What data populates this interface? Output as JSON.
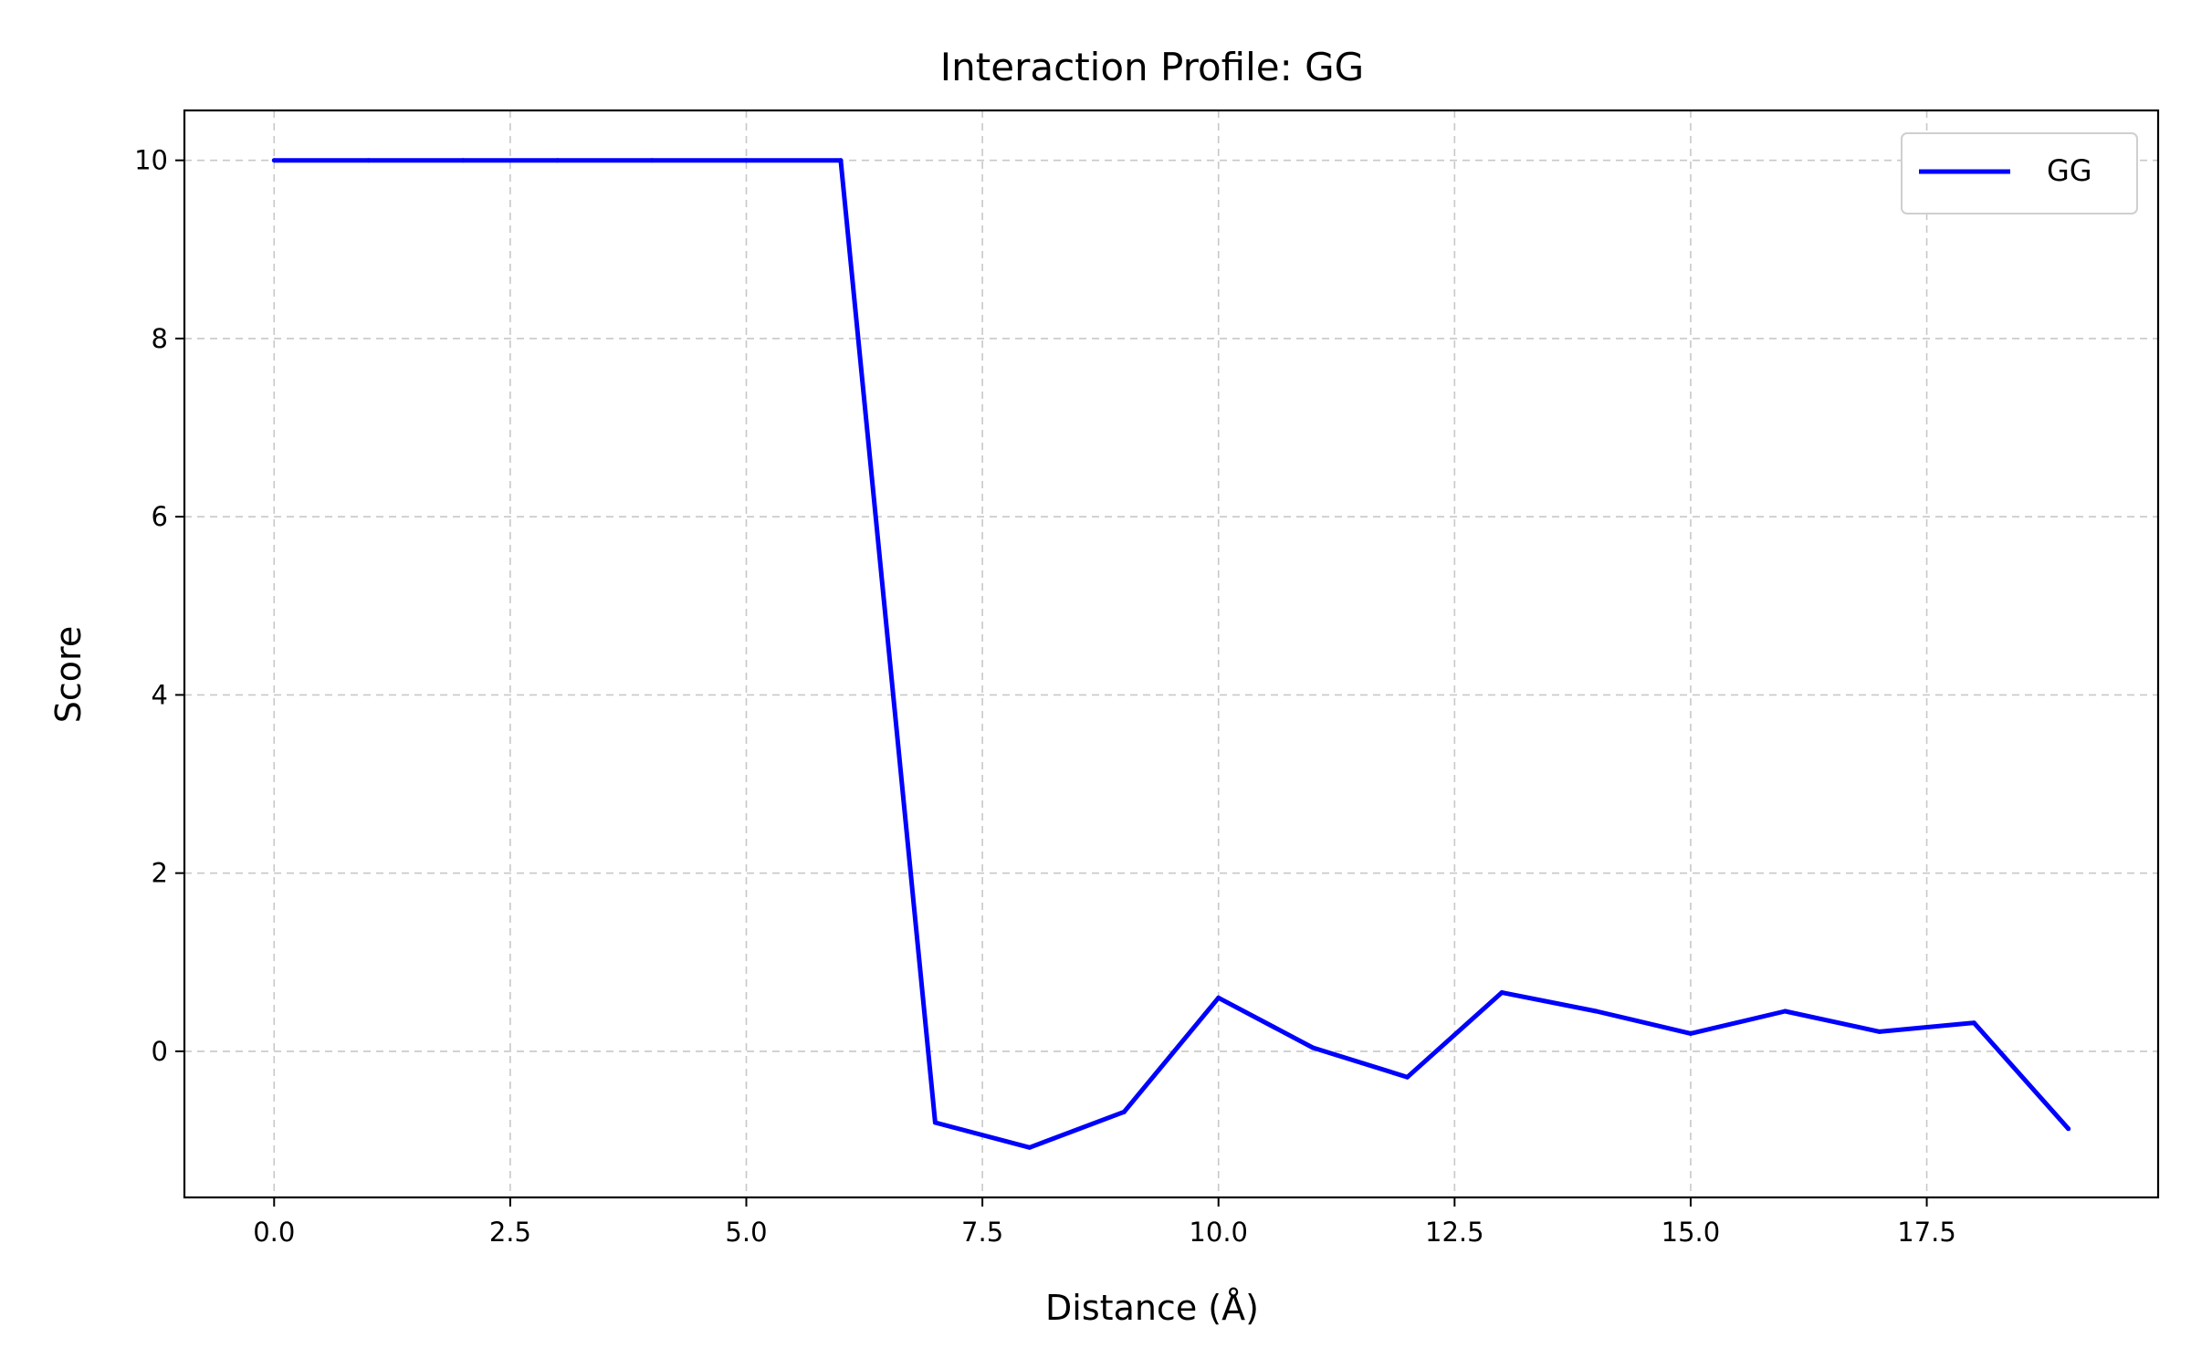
{
  "chart_data": {
    "type": "line",
    "title": "Interaction Profile: GG",
    "xlabel": "Distance (Å)",
    "ylabel": "Score",
    "xlim": [
      -0.95,
      19.95
    ],
    "ylim": [
      -1.64,
      10.56
    ],
    "x_ticks": [
      0.0,
      2.5,
      5.0,
      7.5,
      10.0,
      12.5,
      15.0,
      17.5
    ],
    "x_tick_labels": [
      "0.0",
      "2.5",
      "5.0",
      "7.5",
      "10.0",
      "12.5",
      "15.0",
      "17.5"
    ],
    "y_ticks": [
      0,
      2,
      4,
      6,
      8,
      10
    ],
    "y_tick_labels": [
      "0",
      "2",
      "4",
      "6",
      "8",
      "10"
    ],
    "grid": true,
    "legend_position": "top-right",
    "series": [
      {
        "name": "GG",
        "color": "#0000ff",
        "x": [
          0,
          1,
          2,
          3,
          4,
          5,
          6,
          7,
          8,
          9,
          10,
          11,
          12,
          13,
          14,
          15,
          16,
          17,
          18,
          19
        ],
        "y": [
          10,
          10,
          10,
          10,
          10,
          10,
          10,
          -0.8,
          -1.08,
          -0.68,
          0.6,
          0.04,
          -0.29,
          0.66,
          0.45,
          0.2,
          0.45,
          0.22,
          0.32,
          -0.87
        ]
      }
    ]
  }
}
